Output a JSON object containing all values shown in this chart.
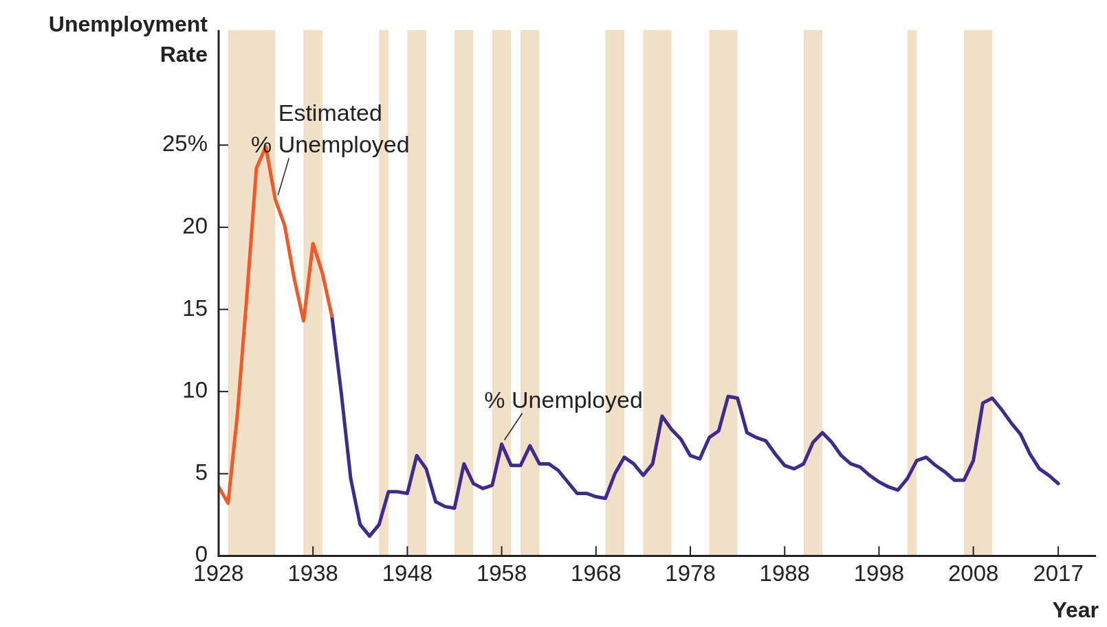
{
  "chart_data": {
    "type": "line",
    "xlabel": "Year",
    "ylabel": "Unemployment Rate",
    "xlim": [
      1928,
      2021
    ],
    "xticks": [
      1928,
      1938,
      1948,
      1958,
      1968,
      1978,
      1988,
      1998,
      2008,
      2017
    ],
    "ylim": [
      0,
      32
    ],
    "yticks": [
      0,
      5,
      10,
      15,
      20,
      {
        "value": 25,
        "label": "25%"
      }
    ],
    "grid": false,
    "legend": false,
    "marker": "none",
    "line_style": "solid",
    "series": [
      {
        "name": "Estimated % Unemployed",
        "color": "#f05a28",
        "x": [
          1928,
          1929,
          1930,
          1931,
          1932,
          1933,
          1934,
          1935,
          1936,
          1937,
          1938,
          1939,
          1940
        ],
        "values": [
          4.2,
          3.2,
          8.7,
          15.9,
          23.6,
          24.9,
          21.7,
          20.1,
          16.9,
          14.3,
          19.0,
          17.2,
          14.6
        ]
      },
      {
        "name": "% Unemployed",
        "color": "#3f2a8f",
        "x": [
          1940,
          1941,
          1942,
          1943,
          1944,
          1945,
          1946,
          1947,
          1948,
          1949,
          1950,
          1951,
          1952,
          1953,
          1954,
          1955,
          1956,
          1957,
          1958,
          1959,
          1960,
          1961,
          1962,
          1963,
          1964,
          1965,
          1966,
          1967,
          1968,
          1969,
          1970,
          1971,
          1972,
          1973,
          1974,
          1975,
          1976,
          1977,
          1978,
          1979,
          1980,
          1981,
          1982,
          1983,
          1984,
          1985,
          1986,
          1987,
          1988,
          1989,
          1990,
          1991,
          1992,
          1993,
          1994,
          1995,
          1996,
          1997,
          1998,
          1999,
          2000,
          2001,
          2002,
          2003,
          2004,
          2005,
          2006,
          2007,
          2008,
          2009,
          2010,
          2011,
          2012,
          2013,
          2014,
          2015,
          2016,
          2017
        ],
        "values": [
          14.6,
          9.9,
          4.7,
          1.9,
          1.2,
          1.9,
          3.9,
          3.9,
          3.8,
          6.1,
          5.3,
          3.3,
          3.0,
          2.9,
          5.6,
          4.4,
          4.1,
          4.3,
          6.8,
          5.5,
          5.5,
          6.7,
          5.6,
          5.6,
          5.2,
          4.5,
          3.8,
          3.8,
          3.6,
          3.5,
          5.0,
          6.0,
          5.6,
          4.9,
          5.6,
          8.5,
          7.7,
          7.1,
          6.1,
          5.9,
          7.2,
          7.6,
          9.7,
          9.6,
          7.5,
          7.2,
          7.0,
          6.2,
          5.5,
          5.3,
          5.6,
          6.9,
          7.5,
          6.9,
          6.1,
          5.6,
          5.4,
          4.9,
          4.5,
          4.2,
          4.0,
          4.7,
          5.8,
          6.0,
          5.5,
          5.1,
          4.6,
          4.6,
          5.8,
          9.3,
          9.6,
          8.9,
          8.1,
          7.4,
          6.2,
          5.3,
          4.9,
          4.4
        ]
      }
    ],
    "bands": [
      {
        "axis": "x",
        "from": 1929,
        "to": 1934,
        "color": "#f0e0c8"
      },
      {
        "axis": "x",
        "from": 1937,
        "to": 1939,
        "color": "#f0e0c8"
      },
      {
        "axis": "x",
        "from": 1945,
        "to": 1946,
        "color": "#f0e0c8"
      },
      {
        "axis": "x",
        "from": 1948,
        "to": 1950,
        "color": "#f0e0c8"
      },
      {
        "axis": "x",
        "from": 1953,
        "to": 1955,
        "color": "#f0e0c8"
      },
      {
        "axis": "x",
        "from": 1957,
        "to": 1959,
        "color": "#f0e0c8"
      },
      {
        "axis": "x",
        "from": 1960,
        "to": 1962,
        "color": "#f0e0c8"
      },
      {
        "axis": "x",
        "from": 1969,
        "to": 1971,
        "color": "#f0e0c8"
      },
      {
        "axis": "x",
        "from": 1973,
        "to": 1976,
        "color": "#f0e0c8"
      },
      {
        "axis": "x",
        "from": 1980,
        "to": 1983,
        "color": "#f0e0c8"
      },
      {
        "axis": "x",
        "from": 1990,
        "to": 1992,
        "color": "#f0e0c8"
      },
      {
        "axis": "x",
        "from": 2001,
        "to": 2002,
        "color": "#f0e0c8"
      },
      {
        "axis": "x",
        "from": 2007,
        "to": 2010,
        "color": "#f0e0c8"
      }
    ]
  }
}
